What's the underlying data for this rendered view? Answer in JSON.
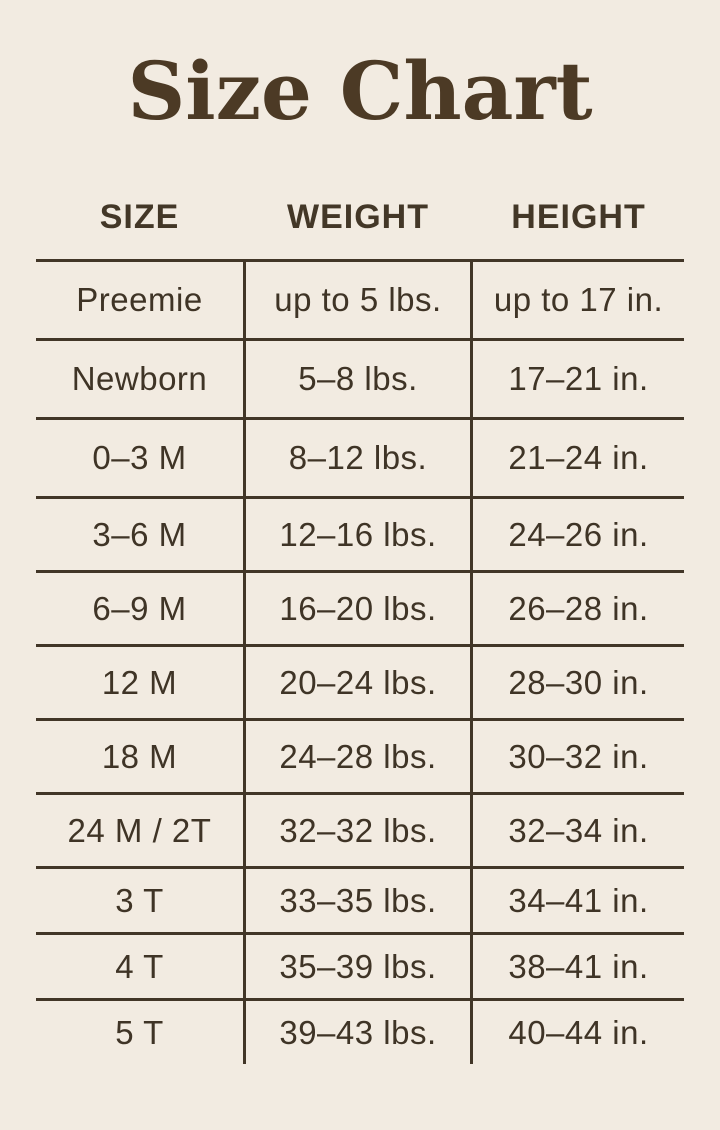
{
  "colors": {
    "background": "#f2ebe1",
    "title_ink": "#4c3a25",
    "text_ink": "#3f3426",
    "rule_ink": "#423627"
  },
  "title": "Size Chart",
  "chart_data": {
    "type": "table",
    "title": "Size Chart",
    "columns": [
      "SIZE",
      "WEIGHT",
      "HEIGHT"
    ],
    "rows": [
      [
        "Preemie",
        "up to 5 lbs.",
        "up to 17 in."
      ],
      [
        "Newborn",
        "5–8 lbs.",
        "17–21 in."
      ],
      [
        "0–3 M",
        "8–12 lbs.",
        "21–24 in."
      ],
      [
        "3–6 M",
        "12–16 lbs.",
        "24–26 in."
      ],
      [
        "6–9 M",
        "16–20 lbs.",
        "26–28 in."
      ],
      [
        "12 M",
        "20–24 lbs.",
        "28–30 in."
      ],
      [
        "18 M",
        "24–28 lbs.",
        "30–32 in."
      ],
      [
        "24 M / 2T",
        "32–32 lbs.",
        "32–34 in."
      ],
      [
        "3 T",
        "33–35 lbs.",
        "34–41 in."
      ],
      [
        "4 T",
        "35–39 lbs.",
        "38–41 in."
      ],
      [
        "5 T",
        "39–43 lbs.",
        "40–44 in."
      ]
    ],
    "layout": {
      "grid": "horizontal rules between rows, two vertical column dividers below header",
      "legend": "none"
    }
  }
}
